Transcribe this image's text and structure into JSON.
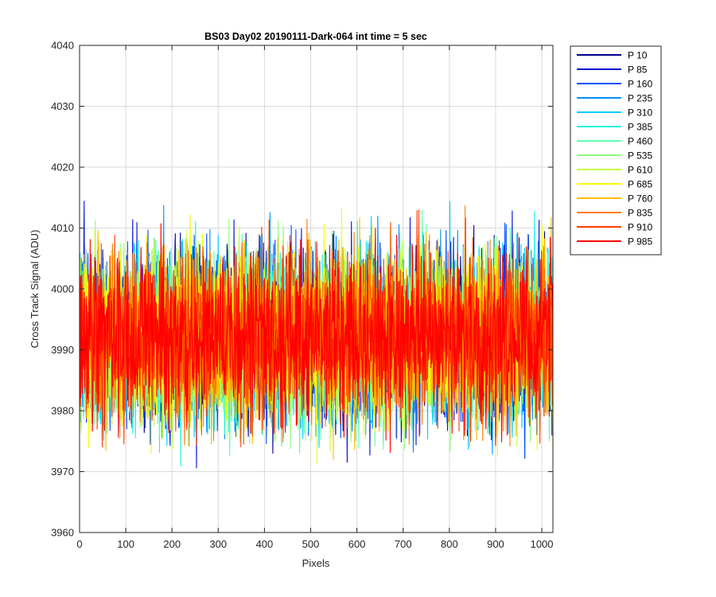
{
  "chart_data": {
    "type": "line",
    "title": "BS03 Day02 20190111-Dark-064 int time = 5 sec",
    "xlabel": "Pixels",
    "ylabel": "Cross Track Signal (ADU)",
    "xlim": [
      0,
      1024
    ],
    "ylim": [
      3960,
      4040
    ],
    "xticks": [
      0,
      100,
      200,
      300,
      400,
      500,
      600,
      700,
      800,
      900,
      1000
    ],
    "yticks": [
      3960,
      3970,
      3980,
      3990,
      4000,
      4010,
      4020,
      4030,
      4040
    ],
    "grid": true,
    "legend_position": "outside-top-right",
    "noise_model": {
      "mean": 3992,
      "std": 7,
      "min": 3960,
      "max": 4032
    },
    "series": [
      {
        "name": "P 10",
        "color": "#00008f"
      },
      {
        "name": "P 85",
        "color": "#0012d6"
      },
      {
        "name": "P 160",
        "color": "#004fff"
      },
      {
        "name": "P 235",
        "color": "#0090ff"
      },
      {
        "name": "P 310",
        "color": "#00ccff"
      },
      {
        "name": "P 385",
        "color": "#18f6e0"
      },
      {
        "name": "P 460",
        "color": "#5cffaf"
      },
      {
        "name": "P 535",
        "color": "#90ff7a"
      },
      {
        "name": "P 610",
        "color": "#c4ff3f"
      },
      {
        "name": "P 685",
        "color": "#f2ff00"
      },
      {
        "name": "P 760",
        "color": "#ffbe00"
      },
      {
        "name": "P 835",
        "color": "#ff7c00"
      },
      {
        "name": "P 910",
        "color": "#ff3a00"
      },
      {
        "name": "P 985",
        "color": "#ff0000"
      }
    ]
  }
}
